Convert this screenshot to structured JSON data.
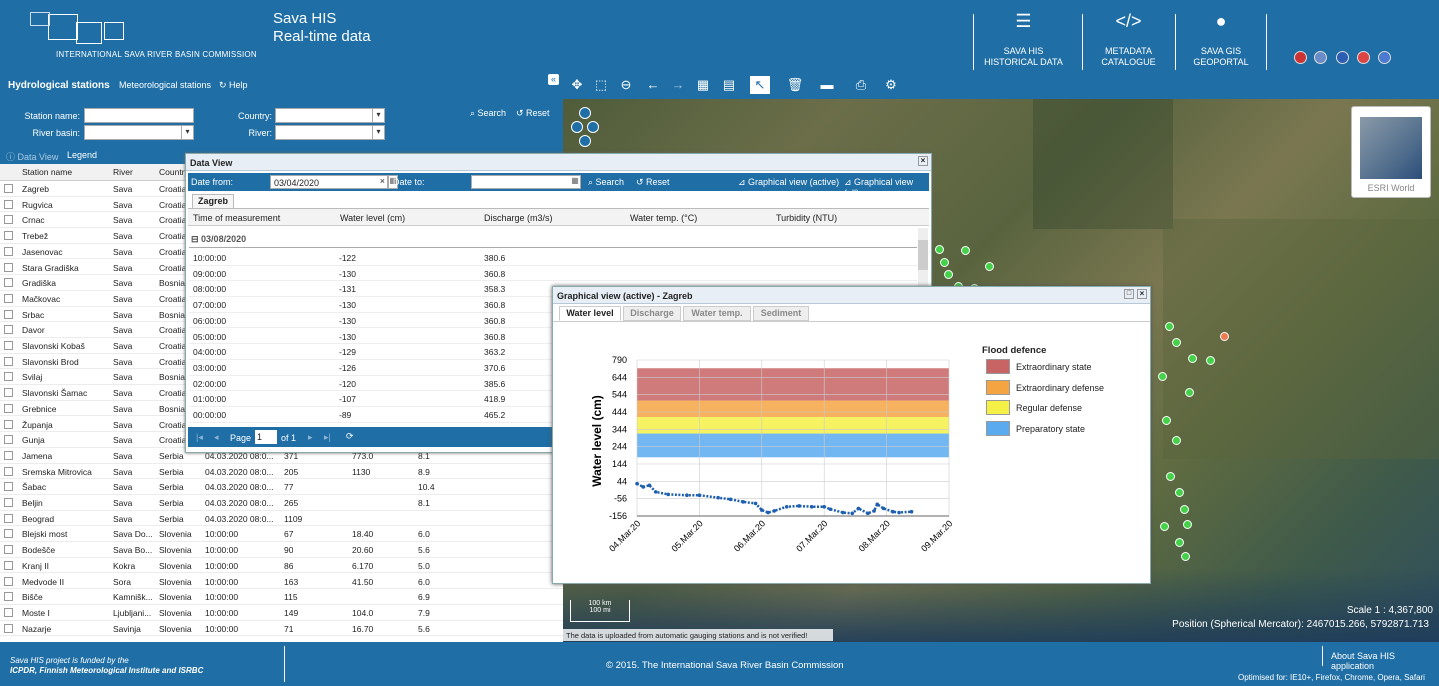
{
  "header": {
    "logo_text": "INTERNATIONAL SAVA RIVER BASIN COMMISSION",
    "title_line1": "Sava HIS",
    "title_line2": "Real-time data",
    "nav": [
      {
        "line1": "SAVA HIS",
        "line2": "HISTORICAL DATA",
        "icon": "list-icon"
      },
      {
        "line1": "METADATA",
        "line2": "CATALOGUE",
        "icon": "code-icon"
      },
      {
        "line1": "SAVA GIS",
        "line2": "GEOPORTAL",
        "icon": "globe-icon"
      }
    ]
  },
  "subbar": {
    "tab_hydro": "Hydrological stations",
    "tab_meteo": "Meteorological stations",
    "help": "Help"
  },
  "search": {
    "station_name": "Station name:",
    "river_basin": "River basin:",
    "country": "Country:",
    "river": "River:",
    "search": "Search",
    "reset": "Reset"
  },
  "dvbar": {
    "data_view": "Data View",
    "legend": "Legend"
  },
  "stations": {
    "headers": [
      "Station name",
      "River",
      "Country"
    ],
    "rows": [
      {
        "name": "Zagreb",
        "river": "Sava",
        "country": "Croatia"
      },
      {
        "name": "Rugvica",
        "river": "Sava",
        "country": "Croatia"
      },
      {
        "name": "Crnac",
        "river": "Sava",
        "country": "Croatia"
      },
      {
        "name": "Trebež",
        "river": "Sava",
        "country": "Croatia"
      },
      {
        "name": "Jasenovac",
        "river": "Sava",
        "country": "Croatia"
      },
      {
        "name": "Stara Gradiška",
        "river": "Sava",
        "country": "Croatia"
      },
      {
        "name": "Gradiška",
        "river": "Sava",
        "country": "Bosnia"
      },
      {
        "name": "Mačkovac",
        "river": "Sava",
        "country": "Croatia"
      },
      {
        "name": "Srbac",
        "river": "Sava",
        "country": "Bosnia"
      },
      {
        "name": "Davor",
        "river": "Sava",
        "country": "Croatia"
      },
      {
        "name": "Slavonski Kobaš",
        "river": "Sava",
        "country": "Croatia"
      },
      {
        "name": "Slavonski Brod",
        "river": "Sava",
        "country": "Croatia"
      },
      {
        "name": "Svilaj",
        "river": "Sava",
        "country": "Bosnia"
      },
      {
        "name": "Slavonski Šamac",
        "river": "Sava",
        "country": "Croatia"
      },
      {
        "name": "Grebnice",
        "river": "Sava",
        "country": "Bosnia"
      },
      {
        "name": "Županja",
        "river": "Sava",
        "country": "Croatia"
      },
      {
        "name": "Gunja",
        "river": "Sava",
        "country": "Croatia"
      },
      {
        "name": "Jamena",
        "river": "Sava",
        "country": "Serbia",
        "time": "04.03.2020 08:0...",
        "wl": "371",
        "q": "773.0",
        "t": "8.1"
      },
      {
        "name": "Sremska Mitrovica",
        "river": "Sava",
        "country": "Serbia",
        "time": "04.03.2020 08:0...",
        "wl": "205",
        "q": "1130",
        "t": "8.9"
      },
      {
        "name": "Šabac",
        "river": "Sava",
        "country": "Serbia",
        "time": "04.03.2020 08:0...",
        "wl": "77",
        "q": "",
        "t": "10.4"
      },
      {
        "name": "Beljin",
        "river": "Sava",
        "country": "Serbia",
        "time": "04.03.2020 08:0...",
        "wl": "265",
        "q": "",
        "t": "8.1"
      },
      {
        "name": "Beograd",
        "river": "Sava",
        "country": "Serbia",
        "time": "04.03.2020 08:0...",
        "wl": "1109",
        "q": "",
        "t": ""
      },
      {
        "name": "Blejski most",
        "river": "Sava Do...",
        "country": "Slovenia",
        "time": "10:00:00",
        "wl": "67",
        "q": "18.40",
        "t": "6.0"
      },
      {
        "name": "Bodešče",
        "river": "Sava Bo...",
        "country": "Slovenia",
        "time": "10:00:00",
        "wl": "90",
        "q": "20.60",
        "t": "5.6"
      },
      {
        "name": "Kranj II",
        "river": "Kokra",
        "country": "Slovenia",
        "time": "10:00:00",
        "wl": "86",
        "q": "6.170",
        "t": "5.0"
      },
      {
        "name": "Medvode II",
        "river": "Sora",
        "country": "Slovenia",
        "time": "10:00:00",
        "wl": "163",
        "q": "41.50",
        "t": "6.0"
      },
      {
        "name": "Bišče",
        "river": "Kamnišk...",
        "country": "Slovenia",
        "time": "10:00:00",
        "wl": "115",
        "q": "",
        "t": "6.9"
      },
      {
        "name": "Moste I",
        "river": "Ljubljani...",
        "country": "Slovenia",
        "time": "10:00:00",
        "wl": "149",
        "q": "104.0",
        "t": "7.9"
      },
      {
        "name": "Nazarje",
        "river": "Savinja",
        "country": "Slovenia",
        "time": "10:00:00",
        "wl": "71",
        "q": "16.70",
        "t": "5.6"
      }
    ]
  },
  "dataview": {
    "title": "Data View",
    "date_from_label": "Date from:",
    "date_from": "03/04/2020",
    "date_to_label": "Date to:",
    "search": "Search",
    "reset": "Reset",
    "gv_active": "Graphical view (active)",
    "gv_all": "Graphical view (all)",
    "tab": "Zagreb",
    "headers": [
      "Time of measurement",
      "Water level (cm)",
      "Discharge (m3/s)",
      "Water temp. (°C)",
      "Turbidity (NTU)"
    ],
    "group": "03/08/2020",
    "rows": [
      [
        "10:00:00",
        "-122",
        "380.6"
      ],
      [
        "09:00:00",
        "-130",
        "360.8"
      ],
      [
        "08:00:00",
        "-131",
        "358.3"
      ],
      [
        "07:00:00",
        "-130",
        "360.8"
      ],
      [
        "06:00:00",
        "-130",
        "360.8"
      ],
      [
        "05:00:00",
        "-130",
        "360.8"
      ],
      [
        "04:00:00",
        "-129",
        "363.2"
      ],
      [
        "03:00:00",
        "-126",
        "370.6"
      ],
      [
        "02:00:00",
        "-120",
        "385.6"
      ],
      [
        "01:00:00",
        "-107",
        "418.9"
      ],
      [
        "00:00:00",
        "-89",
        "465.2"
      ]
    ],
    "page_label": "Page",
    "page": "1",
    "of": "of 1"
  },
  "graph": {
    "title": "Graphical view (active) - Zagreb",
    "tabs": [
      "Water level",
      "Discharge",
      "Water temp.",
      "Sediment"
    ],
    "legend_title": "Flood defence",
    "legend": [
      {
        "label": "Extraordinary state",
        "color": "#c86464"
      },
      {
        "label": "Extraordinary defense",
        "color": "#f5a442"
      },
      {
        "label": "Regular defense",
        "color": "#f5f046"
      },
      {
        "label": "Preparatory state",
        "color": "#5aaaf0"
      }
    ]
  },
  "chart_data": {
    "type": "line",
    "title": "",
    "ylabel": "Water level (cm)",
    "xlabel": "",
    "yticks": [
      "790",
      "644",
      "544",
      "444",
      "344",
      "244",
      "144",
      "44",
      "-56",
      "-156"
    ],
    "xticks": [
      "04.Mar.20",
      "05.Mar.20",
      "06.Mar.20",
      "07.Mar.20",
      "08.Mar.20",
      "09.Mar.20"
    ],
    "ylim": [
      -156,
      790
    ],
    "bands": [
      {
        "name": "Extraordinary state",
        "from": 544,
        "to": 740,
        "color": "#c86464"
      },
      {
        "name": "Extraordinary defense",
        "from": 444,
        "to": 544,
        "color": "#f5a442"
      },
      {
        "name": "Regular defense",
        "from": 344,
        "to": 444,
        "color": "#f5f046"
      },
      {
        "name": "Preparatory state",
        "from": 200,
        "to": 344,
        "color": "#5aaaf0"
      }
    ],
    "series": [
      {
        "values": [
          [
            0,
            40
          ],
          [
            0.1,
            20
          ],
          [
            0.2,
            30
          ],
          [
            0.3,
            -10
          ],
          [
            0.5,
            -25
          ],
          [
            0.8,
            -30
          ],
          [
            1.0,
            -30
          ],
          [
            1.3,
            -45
          ],
          [
            1.5,
            -55
          ],
          [
            1.7,
            -70
          ],
          [
            1.9,
            -80
          ],
          [
            2.0,
            -120
          ],
          [
            2.1,
            -135
          ],
          [
            2.2,
            -125
          ],
          [
            2.4,
            -100
          ],
          [
            2.6,
            -95
          ],
          [
            2.8,
            -100
          ],
          [
            3.0,
            -100
          ],
          [
            3.1,
            -115
          ],
          [
            3.3,
            -135
          ],
          [
            3.45,
            -140
          ],
          [
            3.55,
            -110
          ],
          [
            3.7,
            -140
          ],
          [
            3.8,
            -125
          ],
          [
            3.85,
            -85
          ],
          [
            3.95,
            -110
          ],
          [
            4.1,
            -130
          ],
          [
            4.2,
            -135
          ],
          [
            4.4,
            -130
          ]
        ]
      }
    ]
  },
  "map": {
    "scale": "Scale 1 : 4,367,800",
    "position": "Position (Spherical Mercator): 2467015.266, 5792871.713",
    "scalebar_km": "100 km",
    "scalebar_mi": "100 mi",
    "notice": "The data is uploaded from automatic gauging stations and is not verified!",
    "basemap": "ESRI World"
  },
  "footer": {
    "funded1": "Sava HIS project is funded by the",
    "funded2": "ICPDR, Finnish Meteorological Institute and ISRBC",
    "copyright": "© 2015. The International Sava River Basin Commission",
    "about": "About Sava HIS application",
    "optimised": "Optimised for: IE10+, Firefox, Chrome, Opera, Safari"
  }
}
